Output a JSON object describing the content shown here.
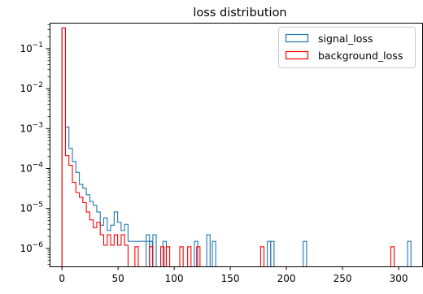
{
  "chart_data": {
    "type": "histogram-step",
    "title": "loss distribution",
    "xlabel": "",
    "ylabel": "",
    "xlim": [
      -11,
      321
    ],
    "ylim_log10": [
      -6.45,
      -0.35
    ],
    "yscale": "log",
    "grid": false,
    "legend_position": "top-right",
    "x_ticks": [
      0,
      50,
      100,
      150,
      200,
      250,
      300
    ],
    "y_ticks": [
      {
        "exp": -1,
        "base": "10",
        "sup": "−1"
      },
      {
        "exp": -2,
        "base": "10",
        "sup": "−2"
      },
      {
        "exp": -3,
        "base": "10",
        "sup": "−3"
      },
      {
        "exp": -4,
        "base": "10",
        "sup": "−4"
      },
      {
        "exp": -5,
        "base": "10",
        "sup": "−5"
      },
      {
        "exp": -6,
        "base": "10",
        "sup": "−6"
      }
    ],
    "bin_width": 3.1,
    "bin_start": 0,
    "y_floor": 3.5e-07,
    "series": [
      {
        "name": "signal_loss",
        "color": "#1f77b4",
        "values": [
          0.33,
          0.0011,
          0.00032,
          0.00015,
          8e-05,
          4e-05,
          3.2e-05,
          2.2e-05,
          1.5e-05,
          1.2e-05,
          8.2e-06,
          3.8e-06,
          5.8e-06,
          2.8e-06,
          3.8e-06,
          8.2e-06,
          4.5e-06,
          2.8e-06,
          4e-06,
          1.5e-06,
          1.5e-06,
          1.5e-06,
          1.5e-06,
          1.5e-06,
          1.5e-06,
          1.5e-06,
          0,
          0,
          0,
          0,
          0,
          0,
          0,
          0,
          0,
          0,
          0,
          0,
          0,
          0,
          0,
          0,
          0,
          0,
          0,
          0,
          0,
          0,
          0,
          0,
          0,
          0,
          0,
          0,
          0,
          0,
          0,
          0,
          0,
          0,
          0,
          0,
          0,
          0,
          0,
          0,
          0,
          0,
          0,
          0,
          0,
          0,
          0,
          0,
          0,
          0,
          0,
          0,
          0,
          0,
          0,
          0,
          0,
          0,
          0,
          0,
          0,
          0,
          0,
          0,
          0,
          0,
          0,
          0,
          0,
          0,
          0,
          0,
          0,
          0,
          0
        ]
      },
      {
        "name": "background_loss",
        "color": "#ff0000",
        "values": [
          0.33,
          0.00021,
          0.00012,
          4.5e-05,
          2.5e-05,
          1.9e-05,
          1.4e-05,
          8.2e-06,
          5.2e-06,
          3.3e-06,
          4.5e-06,
          2.2e-06,
          1.2e-06,
          2.2e-06,
          1.2e-06,
          2.2e-06,
          1.2e-06,
          2.2e-06,
          1.2e-06,
          0,
          0,
          0,
          0,
          0,
          0,
          0,
          0,
          0,
          0,
          0,
          0,
          0,
          0,
          0,
          0,
          0,
          0,
          0,
          0,
          0,
          0,
          0,
          0,
          0,
          0,
          0,
          0,
          0,
          0,
          0,
          0,
          0,
          0,
          0,
          0,
          0,
          0,
          0,
          0,
          0,
          0,
          0,
          0,
          0,
          0,
          0,
          0,
          0,
          0,
          0,
          0,
          0,
          0,
          0,
          0,
          0,
          0,
          0,
          0,
          0,
          0,
          0,
          0,
          0,
          0,
          0,
          0,
          0,
          0,
          0,
          0,
          0,
          0,
          0,
          0,
          0,
          0,
          0,
          0,
          0,
          0
        ]
      }
    ],
    "sparse_spikes": {
      "signal_loss": [
        {
          "x0": 75,
          "x1": 78,
          "v": 2.2e-06
        },
        {
          "x0": 78,
          "x1": 81,
          "v": 1.5e-06
        },
        {
          "x0": 81,
          "x1": 84,
          "v": 2.2e-06
        },
        {
          "x0": 90,
          "x1": 93,
          "v": 1.5e-06
        },
        {
          "x0": 118,
          "x1": 121,
          "v": 1.5e-06
        },
        {
          "x0": 129,
          "x1": 132,
          "v": 2.2e-06
        },
        {
          "x0": 134,
          "x1": 137,
          "v": 1.5e-06
        },
        {
          "x0": 183,
          "x1": 186,
          "v": 1.5e-06
        },
        {
          "x0": 186,
          "x1": 189,
          "v": 1.5e-06
        },
        {
          "x0": 215,
          "x1": 218,
          "v": 1.5e-06
        },
        {
          "x0": 308,
          "x1": 311,
          "v": 1.5e-06
        }
      ],
      "background_loss": [
        {
          "x0": 65,
          "x1": 68,
          "v": 1.1e-06
        },
        {
          "x0": 78,
          "x1": 81,
          "v": 1.1e-06
        },
        {
          "x0": 88,
          "x1": 91,
          "v": 1.1e-06
        },
        {
          "x0": 93,
          "x1": 96,
          "v": 1.1e-06
        },
        {
          "x0": 105,
          "x1": 108,
          "v": 1.1e-06
        },
        {
          "x0": 112,
          "x1": 115,
          "v": 1.1e-06
        },
        {
          "x0": 120,
          "x1": 123,
          "v": 1.1e-06
        },
        {
          "x0": 177,
          "x1": 180,
          "v": 1.1e-06
        },
        {
          "x0": 293,
          "x1": 296,
          "v": 1.1e-06
        }
      ]
    }
  }
}
